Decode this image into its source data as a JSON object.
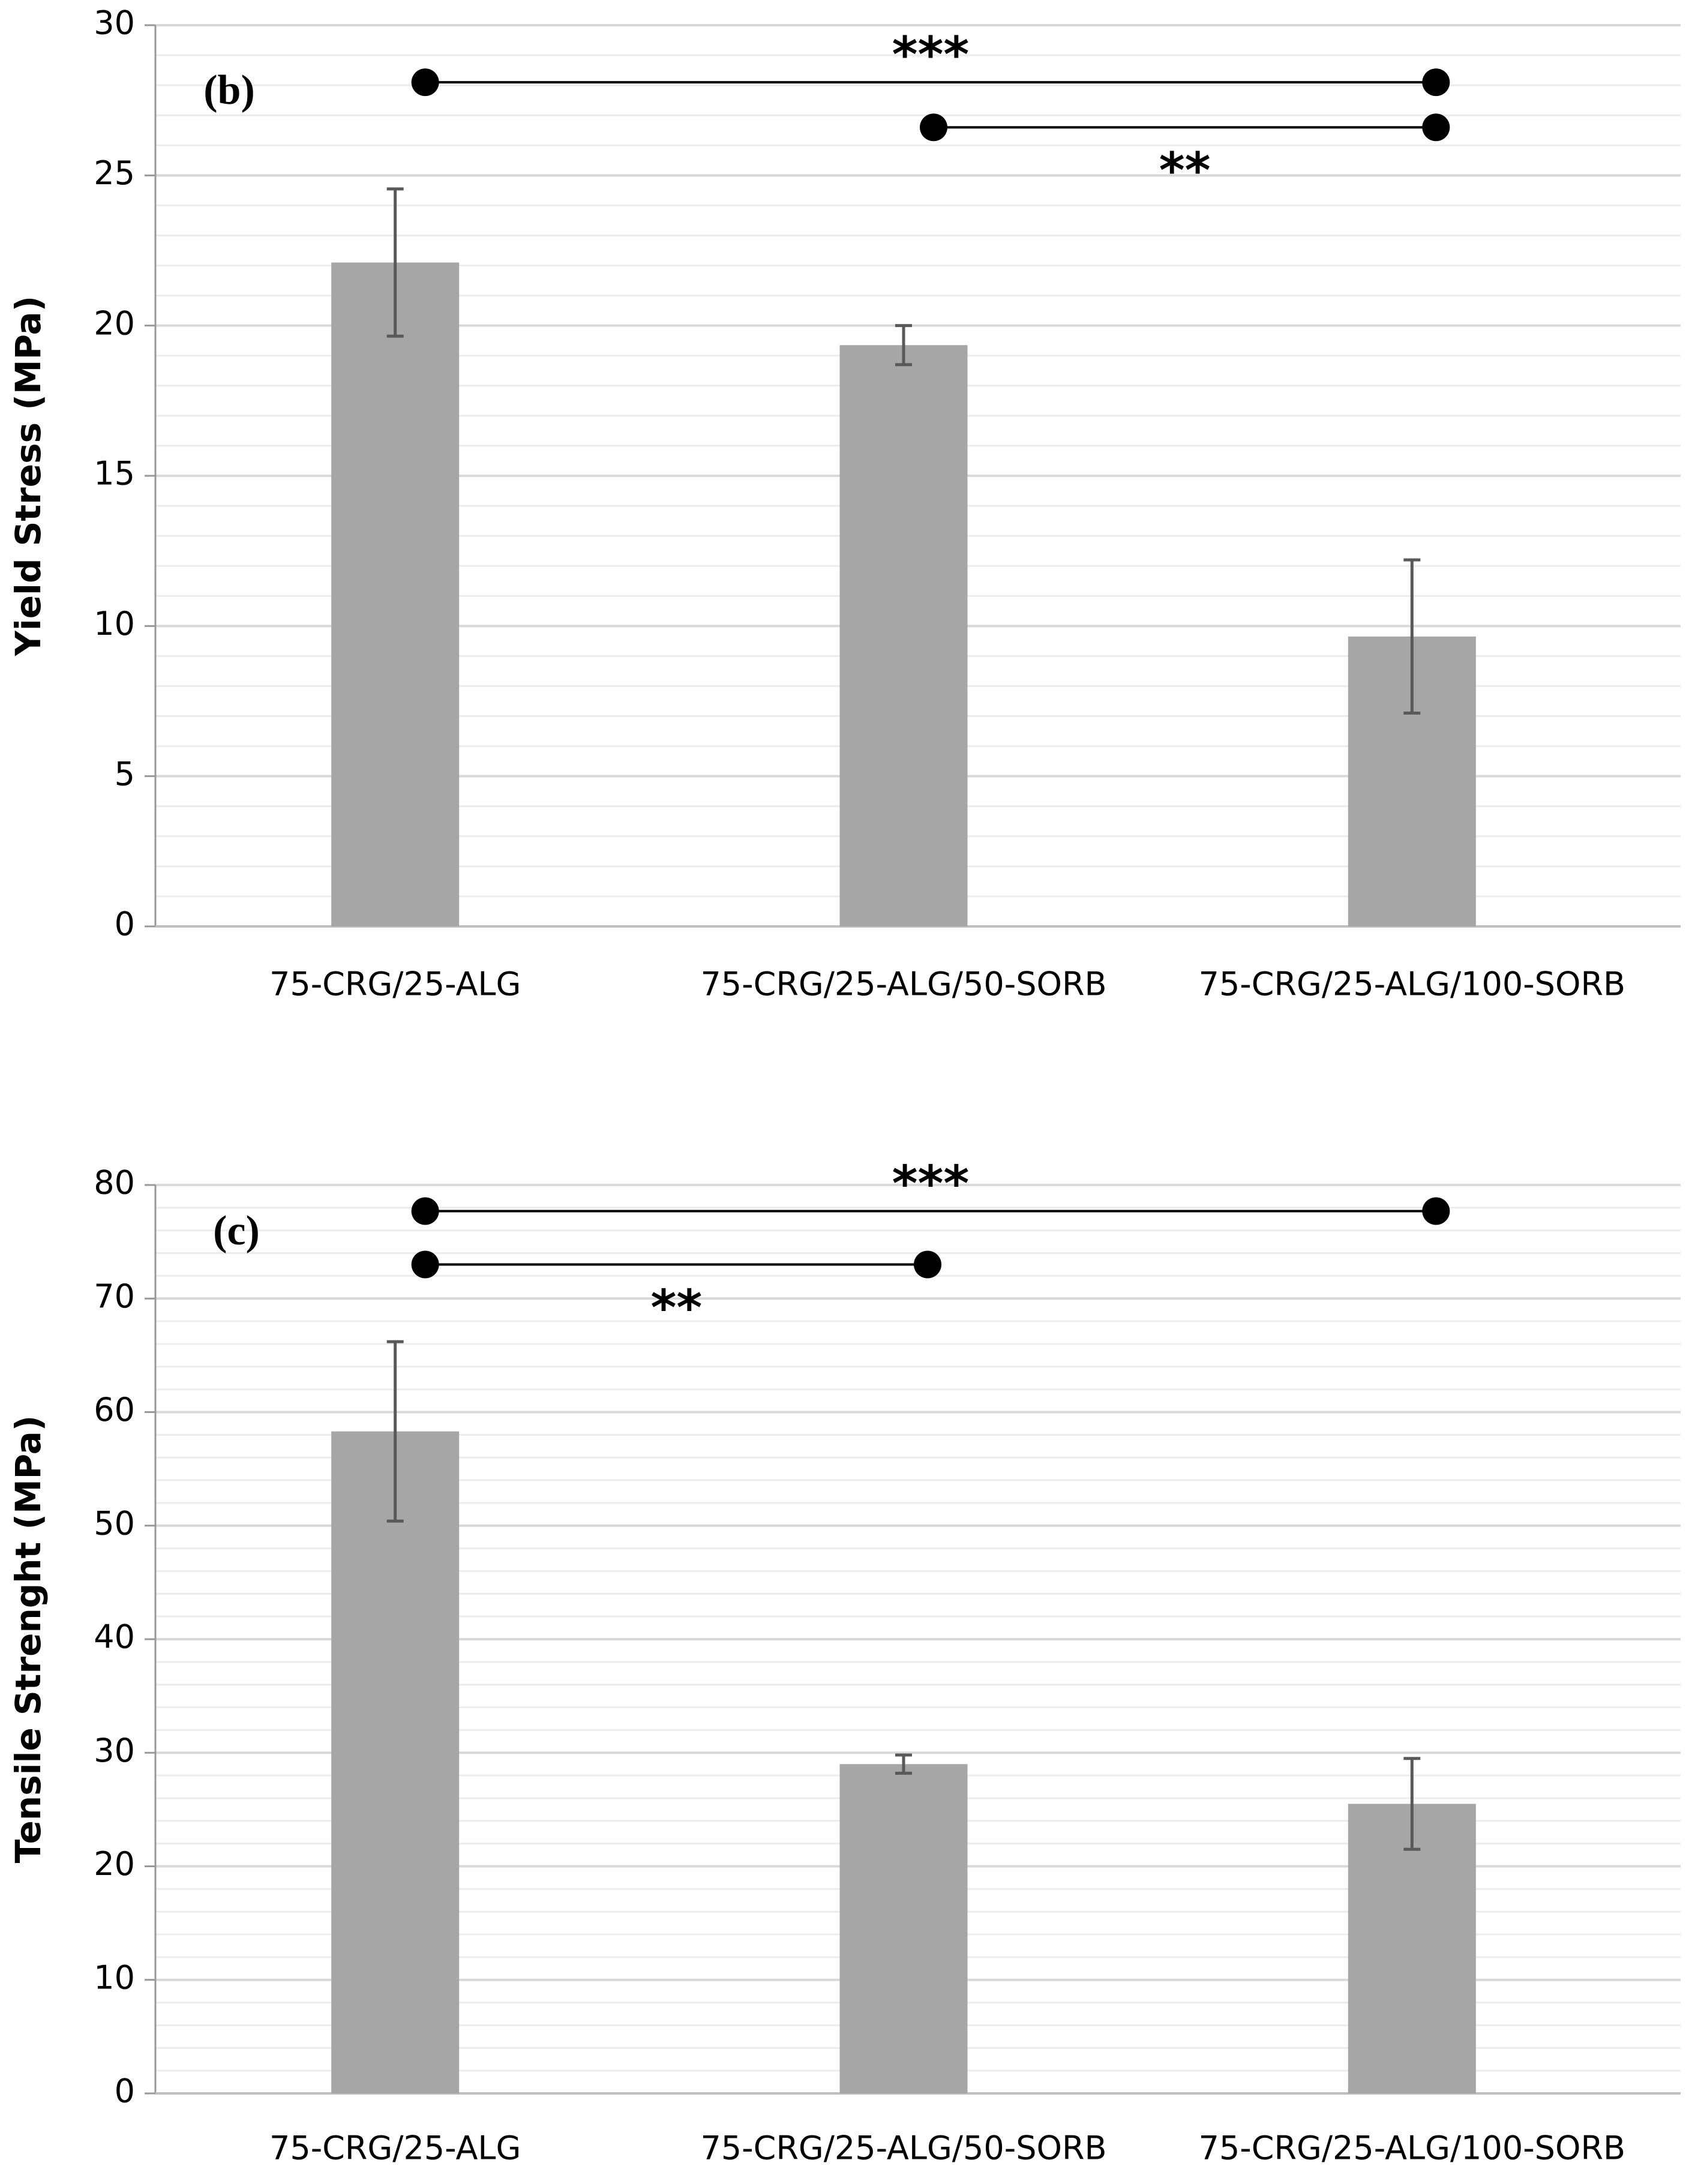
{
  "chart_data": [
    {
      "type": "bar",
      "panel_label": "(b)",
      "y_label": "Yield Stress (MPa)",
      "categories": [
        "75-CRG/25-ALG",
        "75-CRG/25-ALG/50-SORB",
        "75-CRG/25-ALG/100-SORB"
      ],
      "values": [
        22.1,
        19.35,
        9.65
      ],
      "errors": [
        2.45,
        0.65,
        2.55
      ],
      "color": "#a6a6a6",
      "error_color": "#595959",
      "ylim": [
        0,
        30
      ],
      "yticks": [
        0,
        5,
        10,
        15,
        20,
        25,
        30
      ],
      "grid": true,
      "minor_grid": true,
      "significance": [
        {
          "label": "***",
          "from": 0,
          "to": 2,
          "y": 28.1,
          "label_side": "above"
        },
        {
          "label": "**",
          "from": 1,
          "to": 2,
          "y": 26.6,
          "label_side": "below"
        }
      ]
    },
    {
      "type": "bar",
      "panel_label": "(c)",
      "y_label": "Tensile Strenght (MPa)",
      "categories": [
        "75-CRG/25-ALG",
        "75-CRG/25-ALG/50-SORB",
        "75-CRG/25-ALG/100-SORB"
      ],
      "values": [
        58.3,
        29.0,
        25.5
      ],
      "errors": [
        7.9,
        0.8,
        4.0
      ],
      "color": "#a6a6a6",
      "error_color": "#595959",
      "ylim": [
        0,
        80
      ],
      "yticks": [
        0,
        10,
        20,
        30,
        40,
        50,
        60,
        70,
        80
      ],
      "grid": true,
      "minor_grid": true,
      "significance": [
        {
          "label": "***",
          "from": 0,
          "to": 2,
          "y": 77.7,
          "label_side": "above"
        },
        {
          "label": "**",
          "from": 0,
          "to": 1,
          "y": 73,
          "label_side": "below"
        }
      ]
    }
  ]
}
